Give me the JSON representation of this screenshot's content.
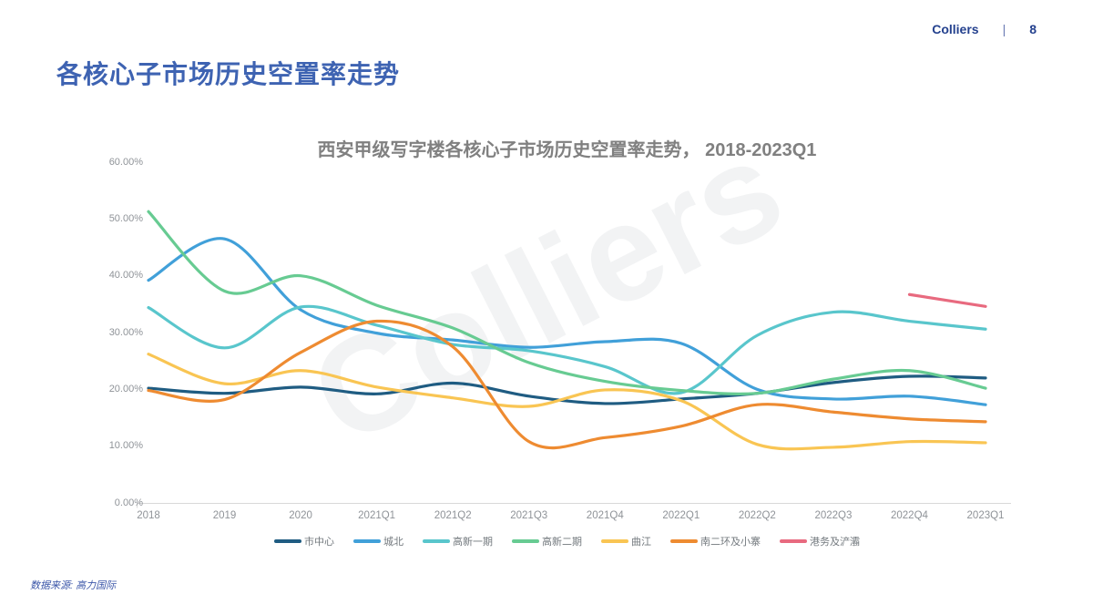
{
  "header": {
    "brand": "Colliers",
    "separator": "|",
    "page_number": "8"
  },
  "page_title": "各核心子市场历史空置率走势",
  "watermark": "Colliers",
  "source_note": "数据来源: 高力国际",
  "chart_data": {
    "type": "line",
    "title": "西安甲级写字楼各核心子市场历史空置率走势， 2018-2023Q1",
    "xlabel": "",
    "ylabel": "",
    "unit": "percent",
    "ylim": [
      0,
      60
    ],
    "grid": false,
    "legend_position": "bottom",
    "yticks": [
      {
        "value": 0,
        "label": "0.00%"
      },
      {
        "value": 10,
        "label": "10.00%"
      },
      {
        "value": 20,
        "label": "20.00%"
      },
      {
        "value": 30,
        "label": "30.00%"
      },
      {
        "value": 40,
        "label": "40.00%"
      },
      {
        "value": 50,
        "label": "50.00%"
      },
      {
        "value": 60,
        "label": "60.00%"
      }
    ],
    "categories": [
      "2018",
      "2019",
      "2020",
      "2021Q1",
      "2021Q2",
      "2021Q3",
      "2021Q4",
      "2022Q1",
      "2022Q2",
      "2022Q3",
      "2022Q4",
      "2023Q1"
    ],
    "series": [
      {
        "id": "city-center",
        "name": "市中心",
        "color": "#1f5c82",
        "values": [
          20.2,
          19.3,
          20.4,
          19.2,
          21.1,
          18.8,
          17.5,
          18.3,
          19.3,
          21.2,
          22.3,
          22.0
        ]
      },
      {
        "id": "chengbei",
        "name": "城北",
        "color": "#41a0d9",
        "values": [
          39.2,
          46.5,
          34.0,
          29.9,
          28.7,
          27.4,
          28.4,
          28.1,
          20.0,
          18.3,
          18.8,
          17.3
        ]
      },
      {
        "id": "gaoxin-phase-1",
        "name": "高新一期",
        "color": "#59c6cc",
        "values": [
          34.4,
          27.3,
          34.5,
          31.3,
          27.9,
          26.8,
          24.0,
          19.4,
          29.5,
          33.6,
          32.0,
          30.6
        ]
      },
      {
        "id": "gaoxin-phase-2",
        "name": "高新二期",
        "color": "#67cb92",
        "values": [
          51.3,
          37.3,
          40.0,
          34.8,
          30.8,
          24.7,
          21.4,
          19.8,
          19.3,
          21.8,
          23.3,
          20.2
        ]
      },
      {
        "id": "qujiang",
        "name": "曲江",
        "color": "#f9c553",
        "values": [
          26.2,
          21.0,
          23.3,
          20.4,
          18.5,
          17.0,
          19.9,
          18.0,
          10.3,
          9.8,
          10.8,
          10.6
        ]
      },
      {
        "id": "south-2nd-ring-xiaozhai",
        "name": "南二环及小寨",
        "color": "#ee8b31",
        "values": [
          19.8,
          18.2,
          26.5,
          32.0,
          27.5,
          10.8,
          11.5,
          13.5,
          17.3,
          16.0,
          14.8,
          14.3
        ]
      },
      {
        "id": "gangwu-chanba",
        "name": "港务及浐灞",
        "color": "#e86a7f",
        "values": [
          null,
          null,
          null,
          null,
          null,
          null,
          null,
          null,
          null,
          null,
          36.7,
          34.6
        ]
      }
    ]
  }
}
